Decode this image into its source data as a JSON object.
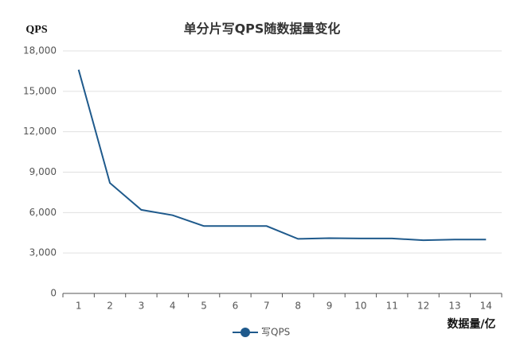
{
  "chart_data": {
    "type": "line",
    "title": "单分片写QPS随数据量变化",
    "y_label": "QPS",
    "x_label": "数据量/亿",
    "categories": [
      "1",
      "2",
      "3",
      "4",
      "5",
      "6",
      "7",
      "8",
      "9",
      "10",
      "11",
      "12",
      "13",
      "14"
    ],
    "series": [
      {
        "name": "写QPS",
        "color": "#1f5a8c",
        "values": [
          16600,
          8200,
          6200,
          5800,
          5000,
          5000,
          5000,
          4050,
          4100,
          4080,
          4080,
          3950,
          4000,
          4000
        ]
      }
    ],
    "ylim": [
      0,
      18000
    ],
    "yticks": [
      0,
      {
        "value": 3000,
        "label": "3,000"
      },
      {
        "value": 6000,
        "label": "6,000"
      },
      {
        "value": 9000,
        "label": "9,000"
      },
      {
        "value": 12000,
        "label": "12,000"
      },
      {
        "value": 15000,
        "label": "15,000"
      },
      {
        "value": 18000,
        "label": "18,000"
      }
    ],
    "grid": true
  }
}
